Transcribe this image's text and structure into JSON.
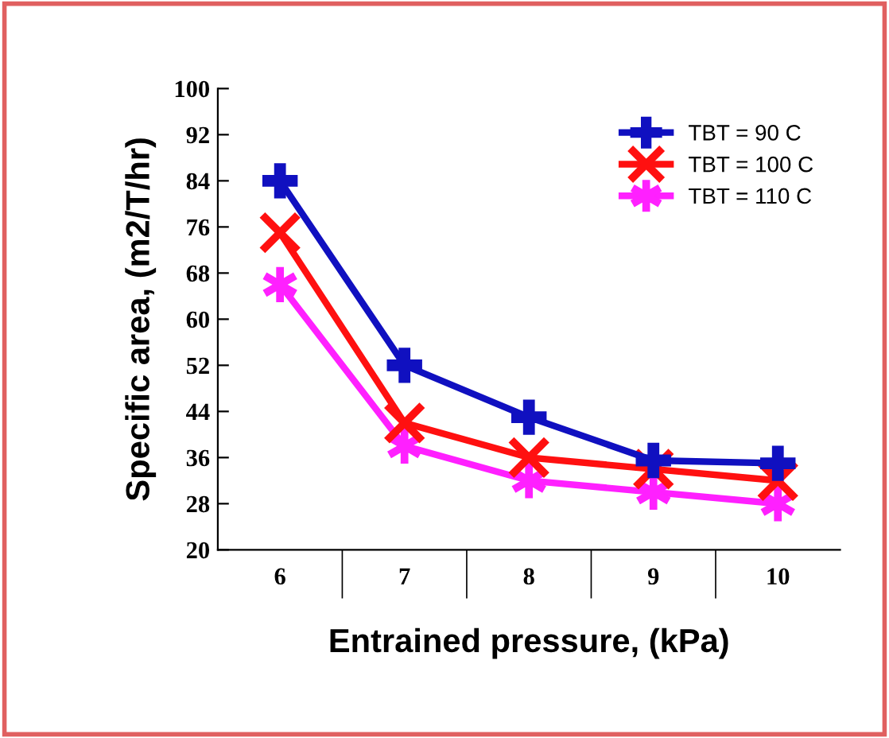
{
  "chart_data": {
    "type": "line",
    "xlabel": "Entrained pressure, (kPa)",
    "ylabel": "Specific area, (m2/T/hr)",
    "categories": [
      "6",
      "7",
      "8",
      "9",
      "10"
    ],
    "series": [
      {
        "name": "TBT = 90 C",
        "color": "#1010c0",
        "marker": "cross",
        "values": [
          84,
          52,
          43,
          35.5,
          35
        ]
      },
      {
        "name": "TBT = 100 C",
        "color": "#ff1010",
        "marker": "cross",
        "values": [
          75,
          42,
          36,
          34,
          32
        ]
      },
      {
        "name": "TBT = 110 C",
        "color": "#ff20ff",
        "marker": "cross",
        "values": [
          66,
          38,
          32,
          30,
          28
        ]
      }
    ],
    "ylim": [
      20,
      100
    ],
    "yticks": [
      20,
      28,
      36,
      44,
      52,
      60,
      68,
      76,
      84,
      92,
      100
    ],
    "grid": false,
    "legend": "top right",
    "line_style": "solid"
  }
}
